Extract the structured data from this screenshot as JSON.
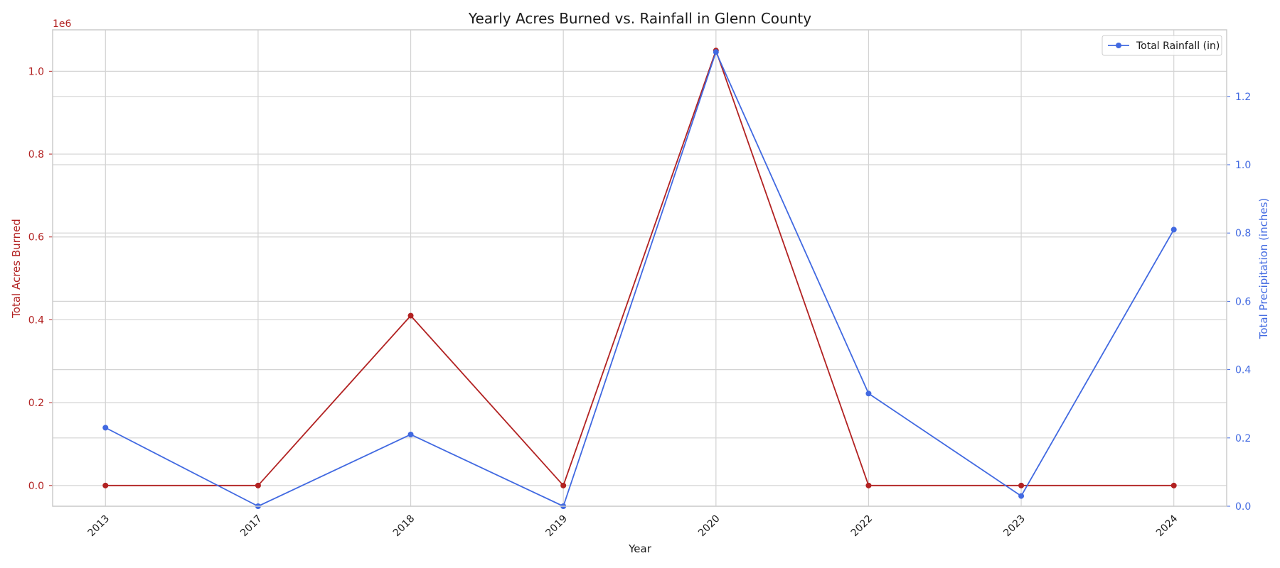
{
  "chart_data": {
    "type": "line",
    "title": "Yearly Acres Burned vs. Rainfall in Glenn County",
    "xlabel": "Year",
    "categories": [
      "2013",
      "2017",
      "2018",
      "2019",
      "2020",
      "2022",
      "2023",
      "2024"
    ],
    "left_axis": {
      "label": "Total Acres Burned",
      "offset_text": "1e6",
      "ylim": [
        -0.05,
        1.1
      ],
      "ticks": [
        0.0,
        0.2,
        0.4,
        0.6,
        0.8,
        1.0
      ],
      "tick_labels": [
        "0.0",
        "0.2",
        "0.4",
        "0.6",
        "0.8",
        "1.0"
      ],
      "color": "#b22222"
    },
    "right_axis": {
      "label": "Total Precipitation (inches)",
      "ylim": [
        0.0,
        1.395
      ],
      "ticks": [
        0.0,
        0.2,
        0.4,
        0.6,
        0.8,
        1.0,
        1.2
      ],
      "tick_labels": [
        "0.0",
        "0.2",
        "0.4",
        "0.6",
        "0.8",
        "1.0",
        "1.2"
      ],
      "color": "#4169e1"
    },
    "series": [
      {
        "axis": "left",
        "color": "#b22222",
        "values": [
          0.0,
          0.0,
          0.41,
          0.0,
          1.05,
          0.0,
          0.0,
          0.0
        ]
      },
      {
        "name": "Total Rainfall (in)",
        "axis": "right",
        "color": "#4169e1",
        "values": [
          0.23,
          0.0,
          0.21,
          0.0,
          1.33,
          0.33,
          0.03,
          0.81
        ]
      }
    ],
    "grid": true,
    "legend": {
      "position": "top-right",
      "entries": [
        "Total Rainfall (in)"
      ]
    }
  }
}
